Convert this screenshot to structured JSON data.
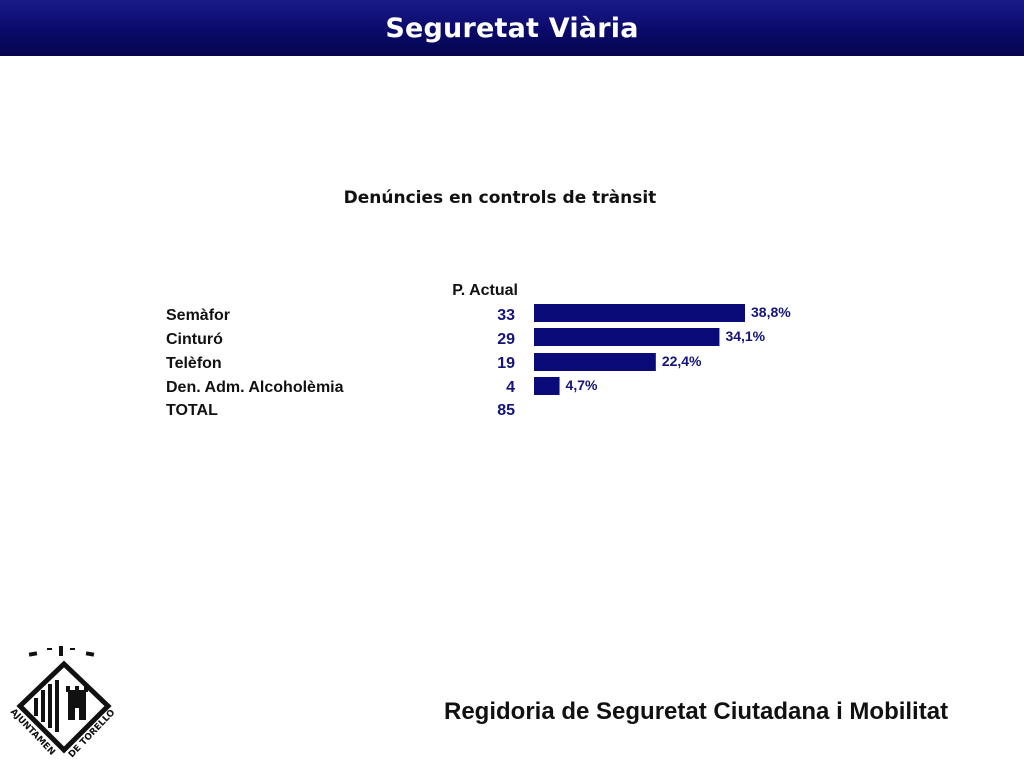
{
  "header": {
    "title": "Seguretat Viària"
  },
  "chart_data": {
    "type": "bar",
    "title": "Denúncies en controls de trànsit",
    "column_header": "P. Actual",
    "categories": [
      "Semàfor",
      "Cinturó",
      "Telèfon",
      "Den. Adm. Alcoholèmia"
    ],
    "values": [
      33,
      29,
      19,
      4
    ],
    "value_labels": [
      "33",
      "29",
      "19",
      "4"
    ],
    "percent_labels": [
      "38,8%",
      "34,1%",
      "22,4%",
      "4,7%"
    ],
    "percents": [
      38.8,
      34.1,
      22.4,
      4.7
    ],
    "total_label": "TOTAL",
    "total_value": "85",
    "bar_color": "#0a0a78"
  },
  "footer": {
    "text": "Regidoria de Seguretat Ciutadana i Mobilitat"
  },
  "logo": {
    "top_text": "AJUNTAMENT",
    "bottom_text": "DE TORELLÓ"
  }
}
